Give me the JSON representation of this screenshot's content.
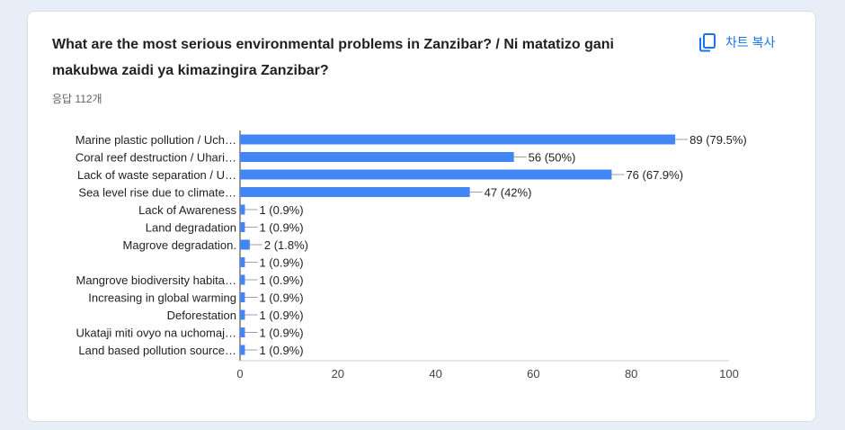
{
  "header": {
    "title": "What are the most serious environmental problems in Zanzibar? / Ni matatizo gani makubwa zaidi ya kimazingira Zanzibar?",
    "responses": "응답 112개",
    "copy_label": "차트 복사"
  },
  "colors": {
    "bar": "#4285f4",
    "accent": "#1a73e8"
  },
  "chart_data": {
    "type": "bar",
    "orientation": "horizontal",
    "categories": [
      "Marine plastic pollution / Uch…",
      "Coral reef destruction / Uhari…",
      "Lack of waste separation / U…",
      "Sea level rise due to climate…",
      "Lack of Awareness",
      "Land degradation",
      "Magrove degradation.",
      "",
      "Mangrove biodiversity habita…",
      "Increasing in global warming",
      "Deforestation",
      "Ukataji miti ovyo na uchomaj…",
      "Land based pollution source…"
    ],
    "values": [
      89,
      56,
      76,
      47,
      1,
      1,
      2,
      1,
      1,
      1,
      1,
      1,
      1
    ],
    "data_labels": [
      "89 (79.5%)",
      "56 (50%)",
      "76 (67.9%)",
      "47 (42%)",
      "1 (0.9%)",
      "1 (0.9%)",
      "2 (1.8%)",
      "1 (0.9%)",
      "1 (0.9%)",
      "1 (0.9%)",
      "1 (0.9%)",
      "1 (0.9%)",
      "1 (0.9%)"
    ],
    "xlim": [
      0,
      100
    ],
    "xticks": [
      "0",
      "20",
      "40",
      "60",
      "80",
      "100"
    ],
    "grid": false
  }
}
